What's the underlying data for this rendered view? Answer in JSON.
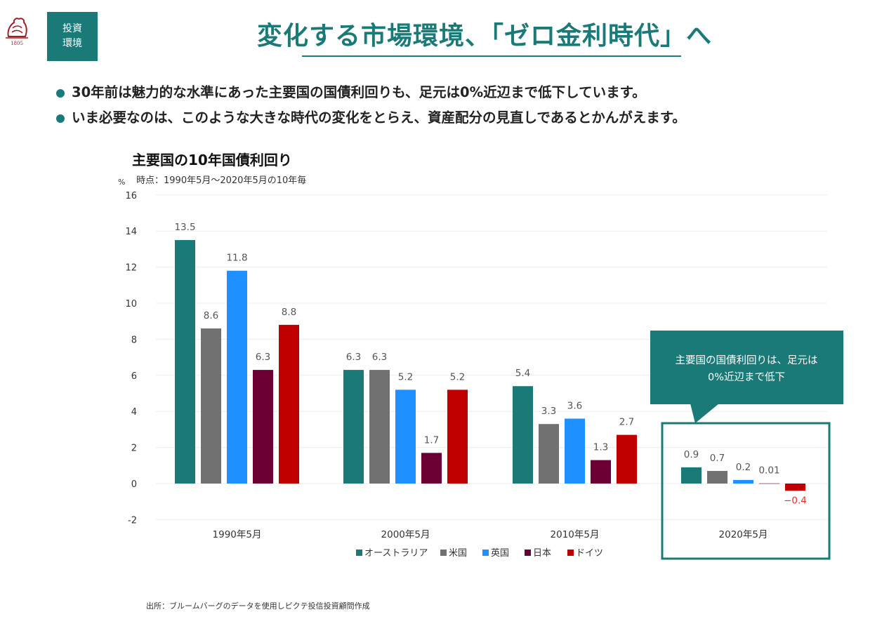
{
  "header": {
    "logo_year": "1805",
    "tag_line1": "投資",
    "tag_line2": "環境",
    "title": "変化する市場環境、「ゼロ金利時代」へ"
  },
  "bullets": [
    "30年前は魅力的な水準にあった主要国の国債利回りも、足元は0%近辺まで低下しています。",
    "いま必要なのは、このような大きな時代の変化をとらえ、資産配分の見直しであるとかんがえます。"
  ],
  "colors": {
    "accent": "#1a7a78",
    "australia": "#1a7a78",
    "us": "#717171",
    "uk": "#1e90ff",
    "japan": "#6b0035",
    "germany": "#c00000",
    "negative_label": "#e03030"
  },
  "chart_data": {
    "type": "bar",
    "title": "主要国の10年国債利回り",
    "subtitle": "時点：1990年5月～2020年5月の10年毎",
    "ylabel": "%",
    "ylim": [
      -2,
      16
    ],
    "yticks": [
      -2,
      0,
      2,
      4,
      6,
      8,
      10,
      12,
      14,
      16
    ],
    "grid": true,
    "categories": [
      "1990年5月",
      "2000年5月",
      "2010年5月",
      "2020年5月"
    ],
    "series": [
      {
        "name": "オーストラリア",
        "values": [
          13.5,
          6.3,
          5.4,
          0.9
        ],
        "labels": [
          "13.5",
          "6.3",
          "5.4",
          "0.9"
        ]
      },
      {
        "name": "米国",
        "values": [
          8.6,
          6.3,
          3.3,
          0.7
        ],
        "labels": [
          "8.6",
          "6.3",
          "3.3",
          "0.7"
        ]
      },
      {
        "name": "英国",
        "values": [
          11.8,
          5.2,
          3.6,
          0.2
        ],
        "labels": [
          "11.8",
          "5.2",
          "3.6",
          "0.2"
        ]
      },
      {
        "name": "日本",
        "values": [
          6.3,
          1.7,
          1.3,
          0.01
        ],
        "labels": [
          "6.3",
          "1.7",
          "1.3",
          "0.01"
        ]
      },
      {
        "name": "ドイツ",
        "values": [
          8.8,
          5.2,
          2.7,
          -0.4
        ],
        "labels": [
          "8.8",
          "5.2",
          "2.7",
          "−0.4"
        ]
      }
    ],
    "legend_position": "bottom",
    "callout": {
      "line1": "主要国の国債利回りは、足元は",
      "line2": "0%近辺まで低下",
      "target_category": "2020年5月"
    }
  },
  "source": "出所：ブルームバーグのデータを使用しピクテ投信投資顧問作成"
}
